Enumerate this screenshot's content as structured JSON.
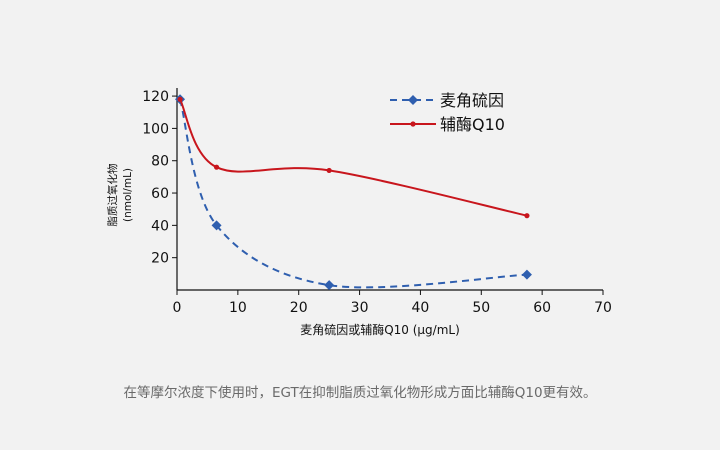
{
  "chart_data": {
    "type": "line",
    "xlabel": "麦角硫因或辅酶Q10 (μg/mL)",
    "ylabel_line1": "脂质过氧化物",
    "ylabel_line2": "(nmol/mL)",
    "xlim": [
      0,
      70
    ],
    "ylim": [
      0,
      125
    ],
    "x_ticks": [
      0,
      10,
      20,
      30,
      40,
      50,
      60,
      70
    ],
    "y_ticks": [
      20,
      40,
      60,
      80,
      100,
      120
    ],
    "grid": false,
    "legend_position": "top-right",
    "series": [
      {
        "name": "麦角硫因",
        "color": "#2f5faf",
        "line_style": "dashed",
        "marker": "diamond",
        "x": [
          0.5,
          6.5,
          25,
          57.5
        ],
        "y": [
          118,
          40,
          3,
          9.5
        ]
      },
      {
        "name": "辅酶Q10",
        "color": "#c8161d",
        "line_style": "solid",
        "marker": "dot",
        "x": [
          0.5,
          6.5,
          25,
          57.5
        ],
        "y": [
          118,
          76,
          74,
          46
        ]
      }
    ]
  },
  "caption": "在等摩尔浓度下使用时，EGT在抑制脂质过氧化物形成方面比辅酶Q10更有效。"
}
